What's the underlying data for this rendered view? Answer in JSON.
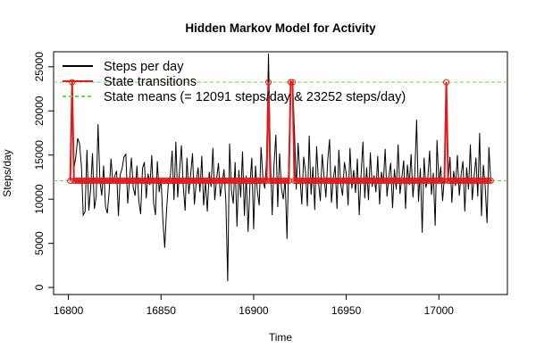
{
  "chart_data": {
    "type": "line",
    "title": "Hidden Markov Model for Activity",
    "x_label": "Time",
    "y_label": "Steps/day",
    "xlim": [
      16792,
      17037
    ],
    "ylim": [
      -800,
      26700
    ],
    "xticks": [
      16800,
      16850,
      16900,
      16950,
      17000
    ],
    "yticks": [
      0,
      5000,
      10000,
      15000,
      20000,
      25000
    ],
    "legend": "top-left",
    "x": [
      16801,
      16802,
      16803,
      16804,
      16805,
      16806,
      16807,
      16808,
      16809,
      16810,
      16811,
      16812,
      16813,
      16814,
      16815,
      16816,
      16817,
      16818,
      16819,
      16820,
      16821,
      16822,
      16823,
      16824,
      16825,
      16826,
      16827,
      16828,
      16829,
      16830,
      16831,
      16832,
      16833,
      16834,
      16835,
      16836,
      16837,
      16838,
      16839,
      16840,
      16841,
      16842,
      16843,
      16844,
      16845,
      16846,
      16847,
      16848,
      16849,
      16850,
      16851,
      16852,
      16853,
      16854,
      16855,
      16856,
      16857,
      16858,
      16859,
      16860,
      16861,
      16862,
      16863,
      16864,
      16865,
      16866,
      16867,
      16868,
      16869,
      16870,
      16871,
      16872,
      16873,
      16874,
      16875,
      16876,
      16877,
      16878,
      16879,
      16880,
      16881,
      16882,
      16883,
      16884,
      16885,
      16886,
      16887,
      16888,
      16889,
      16890,
      16891,
      16892,
      16893,
      16894,
      16895,
      16896,
      16897,
      16898,
      16899,
      16900,
      16901,
      16902,
      16903,
      16904,
      16905,
      16906,
      16907,
      16908,
      16909,
      16910,
      16911,
      16912,
      16913,
      16914,
      16915,
      16916,
      16917,
      16918,
      16919,
      16920,
      16921,
      16922,
      16923,
      16924,
      16925,
      16926,
      16927,
      16928,
      16929,
      16930,
      16931,
      16932,
      16933,
      16934,
      16935,
      16936,
      16937,
      16938,
      16939,
      16940,
      16941,
      16942,
      16943,
      16944,
      16945,
      16946,
      16947,
      16948,
      16949,
      16950,
      16951,
      16952,
      16953,
      16954,
      16955,
      16956,
      16957,
      16958,
      16959,
      16960,
      16961,
      16962,
      16963,
      16964,
      16965,
      16966,
      16967,
      16968,
      16969,
      16970,
      16971,
      16972,
      16973,
      16974,
      16975,
      16976,
      16977,
      16978,
      16979,
      16980,
      16981,
      16982,
      16983,
      16984,
      16985,
      16986,
      16987,
      16988,
      16989,
      16990,
      16991,
      16992,
      16993,
      16994,
      16995,
      16996,
      16997,
      16998,
      16999,
      17000,
      17001,
      17002,
      17003,
      17004,
      17005,
      17006,
      17007,
      17008,
      17009,
      17010,
      17011,
      17012,
      17013,
      17014,
      17015,
      17016,
      17017,
      17018,
      17019,
      17020,
      17021,
      17022,
      17023,
      17024,
      17025,
      17026,
      17027,
      17028
    ],
    "series": [
      {
        "name": "Steps per day",
        "color": "#000000",
        "width": 1,
        "values": [
          12200,
          23300,
          13500,
          14800,
          16900,
          16300,
          13800,
          8200,
          8600,
          15600,
          8700,
          11200,
          15200,
          8900,
          10300,
          18500,
          12100,
          10400,
          13800,
          9200,
          8400,
          10900,
          14600,
          11800,
          12600,
          13200,
          8100,
          12800,
          13500,
          14800,
          15100,
          9500,
          12200,
          14700,
          11300,
          10400,
          13800,
          9800,
          8300,
          13500,
          14200,
          10100,
          12900,
          11600,
          15000,
          9600,
          8200,
          14300,
          10800,
          12400,
          7600,
          4500,
          8800,
          11900,
          12500,
          15500,
          9900,
          16500,
          10200,
          13200,
          16100,
          11500,
          8700,
          14700,
          10600,
          12800,
          15200,
          9400,
          11900,
          13600,
          10800,
          14900,
          9300,
          12000,
          8600,
          13100,
          11400,
          15800,
          9900,
          12300,
          14100,
          10300,
          11800,
          13400,
          9700,
          700,
          16300,
          11000,
          9500,
          14200,
          6900,
          13300,
          10200,
          15400,
          8100,
          12700,
          6300,
          11600,
          14700,
          6600,
          13800,
          10900,
          9300,
          15900,
          12400,
          11200,
          14600,
          26500,
          15200,
          8200,
          13900,
          17300,
          9100,
          15200,
          11200,
          10000,
          12300,
          5500,
          14800,
          23300,
          23200,
          18000,
          11100,
          16400,
          12600,
          9400,
          14800,
          13100,
          9200,
          17200,
          10500,
          13700,
          8800,
          16000,
          11900,
          9800,
          15100,
          12600,
          10200,
          14400,
          16800,
          9600,
          12300,
          13800,
          8900,
          15600,
          11700,
          10400,
          14200,
          12900,
          9300,
          15800,
          11200,
          13300,
          10700,
          14600,
          8200,
          12800,
          16500,
          10100,
          13600,
          9900,
          15300,
          11400,
          12700,
          10800,
          14900,
          9400,
          13100,
          11800,
          15700,
          10300,
          12600,
          14100,
          9000,
          13400,
          11100,
          16200,
          10600,
          12400,
          14400,
          8900,
          13900,
          11600,
          15100,
          10200,
          12900,
          19000,
          9700,
          13500,
          6200,
          14700,
          11300,
          12300,
          15500,
          10500,
          13000,
          7000,
          16700,
          11800,
          13700,
          9800,
          12600,
          23300,
          12000,
          14800,
          9600,
          13200,
          11500,
          15000,
          10400,
          12800,
          14300,
          8600,
          13600,
          11100,
          16200,
          9900,
          12500,
          14700,
          10300,
          17500,
          8100,
          13900,
          11400,
          7300,
          15900,
          12000
        ]
      },
      {
        "name": "State transitions",
        "color": "#e31a1c",
        "width": 2,
        "markers": true,
        "values": [
          12091,
          23252,
          12091,
          12091,
          12091,
          12091,
          12091,
          12091,
          12091,
          12091,
          12091,
          12091,
          12091,
          12091,
          12091,
          12091,
          12091,
          12091,
          12091,
          12091,
          12091,
          12091,
          12091,
          12091,
          12091,
          12091,
          12091,
          12091,
          12091,
          12091,
          12091,
          12091,
          12091,
          12091,
          12091,
          12091,
          12091,
          12091,
          12091,
          12091,
          12091,
          12091,
          12091,
          12091,
          12091,
          12091,
          12091,
          12091,
          12091,
          12091,
          12091,
          12091,
          12091,
          12091,
          12091,
          12091,
          12091,
          12091,
          12091,
          12091,
          12091,
          12091,
          12091,
          12091,
          12091,
          12091,
          12091,
          12091,
          12091,
          12091,
          12091,
          12091,
          12091,
          12091,
          12091,
          12091,
          12091,
          12091,
          12091,
          12091,
          12091,
          12091,
          12091,
          12091,
          12091,
          12091,
          12091,
          12091,
          12091,
          12091,
          12091,
          12091,
          12091,
          12091,
          12091,
          12091,
          12091,
          12091,
          12091,
          12091,
          12091,
          12091,
          12091,
          12091,
          12091,
          12091,
          12091,
          23252,
          12091,
          12091,
          12091,
          12091,
          12091,
          12091,
          12091,
          12091,
          12091,
          12091,
          12091,
          23252,
          23252,
          12091,
          12091,
          12091,
          12091,
          12091,
          12091,
          12091,
          12091,
          12091,
          12091,
          12091,
          12091,
          12091,
          12091,
          12091,
          12091,
          12091,
          12091,
          12091,
          12091,
          12091,
          12091,
          12091,
          12091,
          12091,
          12091,
          12091,
          12091,
          12091,
          12091,
          12091,
          12091,
          12091,
          12091,
          12091,
          12091,
          12091,
          12091,
          12091,
          12091,
          12091,
          12091,
          12091,
          12091,
          12091,
          12091,
          12091,
          12091,
          12091,
          12091,
          12091,
          12091,
          12091,
          12091,
          12091,
          12091,
          12091,
          12091,
          12091,
          12091,
          12091,
          12091,
          12091,
          12091,
          12091,
          12091,
          12091,
          12091,
          12091,
          12091,
          12091,
          12091,
          12091,
          12091,
          12091,
          12091,
          12091,
          12091,
          12091,
          12091,
          12091,
          12091,
          23252,
          12091,
          12091,
          12091,
          12091,
          12091,
          12091,
          12091,
          12091,
          12091,
          12091,
          12091,
          12091,
          12091,
          12091,
          12091,
          12091,
          12091,
          12091,
          12091,
          12091,
          12091,
          12091,
          12091,
          12091
        ]
      }
    ],
    "hlines": {
      "name": "State means (= 12091 steps/day & 23252 steps/day)",
      "color": "#66dd44",
      "values": [
        12091,
        23252
      ]
    }
  }
}
